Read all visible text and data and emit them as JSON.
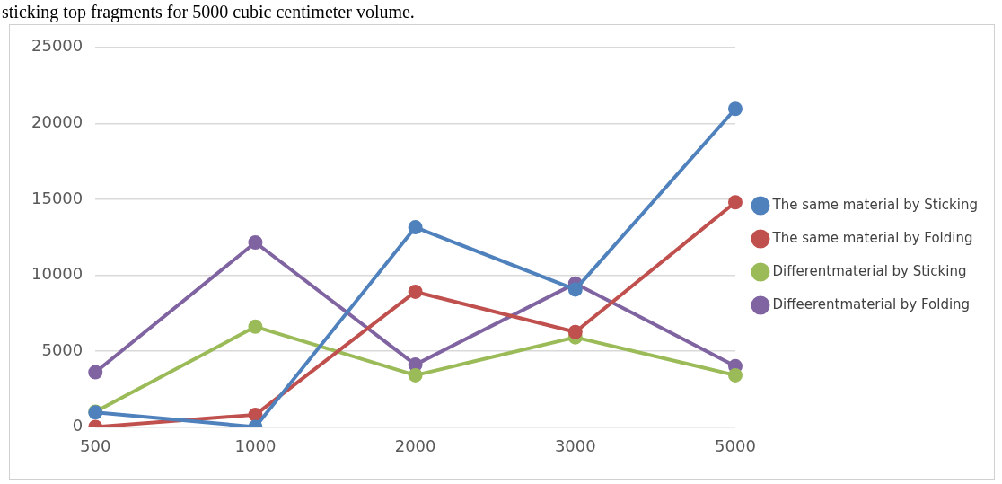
{
  "chart_data": {
    "type": "line",
    "categories": [
      "500",
      "1000",
      "2000",
      "3000",
      "5000"
    ],
    "series": [
      {
        "name": "The same material by Sticking",
        "color": "#4f81bd",
        "values": [
          950,
          0,
          13150,
          9050,
          20950
        ]
      },
      {
        "name": "The same material by Folding",
        "color": "#c0504d",
        "values": [
          0,
          800,
          8900,
          6250,
          14800
        ]
      },
      {
        "name": "Differentmaterial by Sticking",
        "color": "#9bbb59",
        "values": [
          1000,
          6600,
          3400,
          5900,
          3400
        ]
      },
      {
        "name": "Diffeerentmaterial by Folding",
        "color": "#8064a2",
        "values": [
          3600,
          12150,
          4100,
          9450,
          4000
        ]
      }
    ],
    "ylim": [
      0,
      25000
    ],
    "yticks": [
      0,
      5000,
      10000,
      15000,
      20000,
      25000
    ],
    "grid": "y",
    "legend": "right",
    "marker": "circle",
    "line_style": "solid",
    "annotations": [
      "sticking top fragments for 5000 cubic centimeter volume."
    ]
  }
}
